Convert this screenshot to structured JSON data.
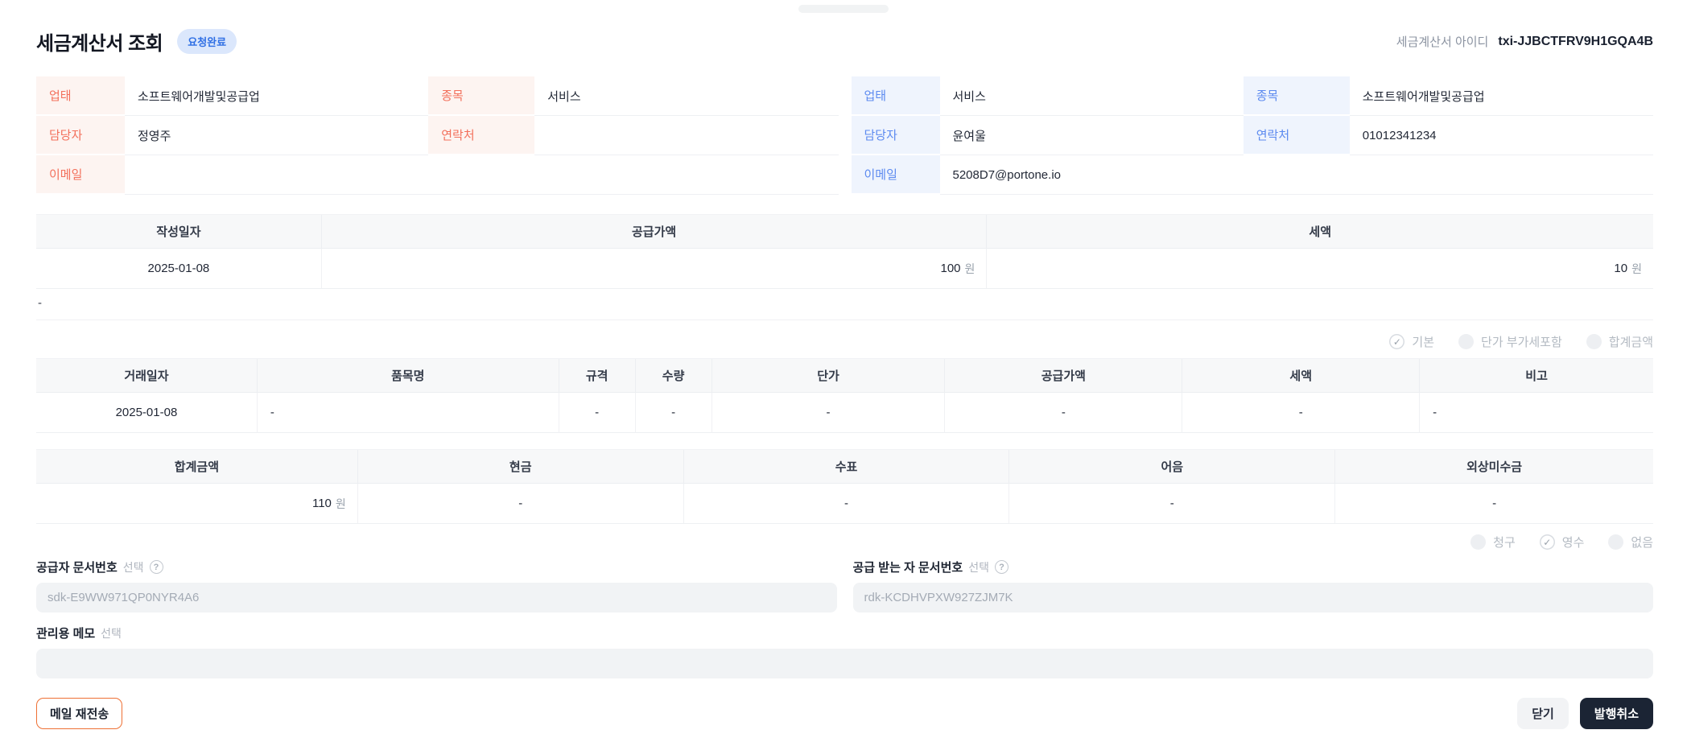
{
  "header": {
    "title": "세금계산서 조회",
    "status_badge": "요청완료",
    "invoice_id_label": "세금계산서 아이디",
    "invoice_id": "txi-JJBCTFRV9H1GQA4B"
  },
  "supplier": {
    "rows": [
      {
        "label1": "업태",
        "value1": "소프트웨어개발및공급업",
        "label2": "종목",
        "value2": "서비스"
      },
      {
        "label1": "담당자",
        "value1": "정영주",
        "label2": "연락처",
        "value2": ""
      },
      {
        "label1": "이메일",
        "value1": ""
      }
    ]
  },
  "buyer": {
    "rows": [
      {
        "label1": "업태",
        "value1": "서비스",
        "label2": "종목",
        "value2": "소프트웨어개발및공급업"
      },
      {
        "label1": "담당자",
        "value1": "윤여울",
        "label2": "연락처",
        "value2": "01012341234"
      },
      {
        "label1": "이메일",
        "value1": "5208D7@portone.io"
      }
    ]
  },
  "invoice_table": {
    "headers": [
      "작성일자",
      "공급가액",
      "세액"
    ],
    "date": "2025-01-08",
    "supply_amount": "100",
    "tax_amount": "10",
    "currency": "원"
  },
  "placeholder_dash": "-",
  "view_options": [
    {
      "label": "기본",
      "checked": true
    },
    {
      "label": "단가 부가세포함",
      "checked": false
    },
    {
      "label": "합계금액",
      "checked": false
    }
  ],
  "item_table": {
    "headers": [
      "거래일자",
      "품목명",
      "규격",
      "수량",
      "단가",
      "공급가액",
      "세액",
      "비고"
    ],
    "row": [
      "2025-01-08",
      "-",
      "-",
      "-",
      "-",
      "-",
      "-",
      "-"
    ]
  },
  "totals_table": {
    "headers": [
      "합계금액",
      "현금",
      "수표",
      "어음",
      "외상미수금"
    ],
    "total_amount": "110",
    "currency": "원",
    "cash": "-",
    "cheque": "-",
    "bill": "-",
    "credit": "-"
  },
  "receipt_options": [
    {
      "label": "청구",
      "checked": false
    },
    {
      "label": "영수",
      "checked": true
    },
    {
      "label": "없음",
      "checked": false
    }
  ],
  "fields": {
    "supplier_doc": {
      "label": "공급자 문서번호",
      "optional": "선택",
      "help_icon": "?",
      "value": "sdk-E9WW971QP0NYR4A6"
    },
    "recipient_doc": {
      "label": "공급 받는 자 문서번호",
      "optional": "선택",
      "help_icon": "?",
      "value": "rdk-KCDHVPXW927ZJM7K"
    },
    "memo": {
      "label": "관리용 메모",
      "optional": "선택",
      "value": ""
    }
  },
  "footer": {
    "resend_label": "메일 재전송",
    "close_label": "닫기",
    "cancel_label": "발행취소"
  },
  "colors": {
    "supplier_accent": "#f3705c",
    "buyer_accent": "#5c8af0",
    "badge_bg": "#dbe7fc",
    "badge_text": "#2f6fe4",
    "dark_button": "#1b2434",
    "resend_border": "#ee7034"
  },
  "check_glyph": "✓"
}
